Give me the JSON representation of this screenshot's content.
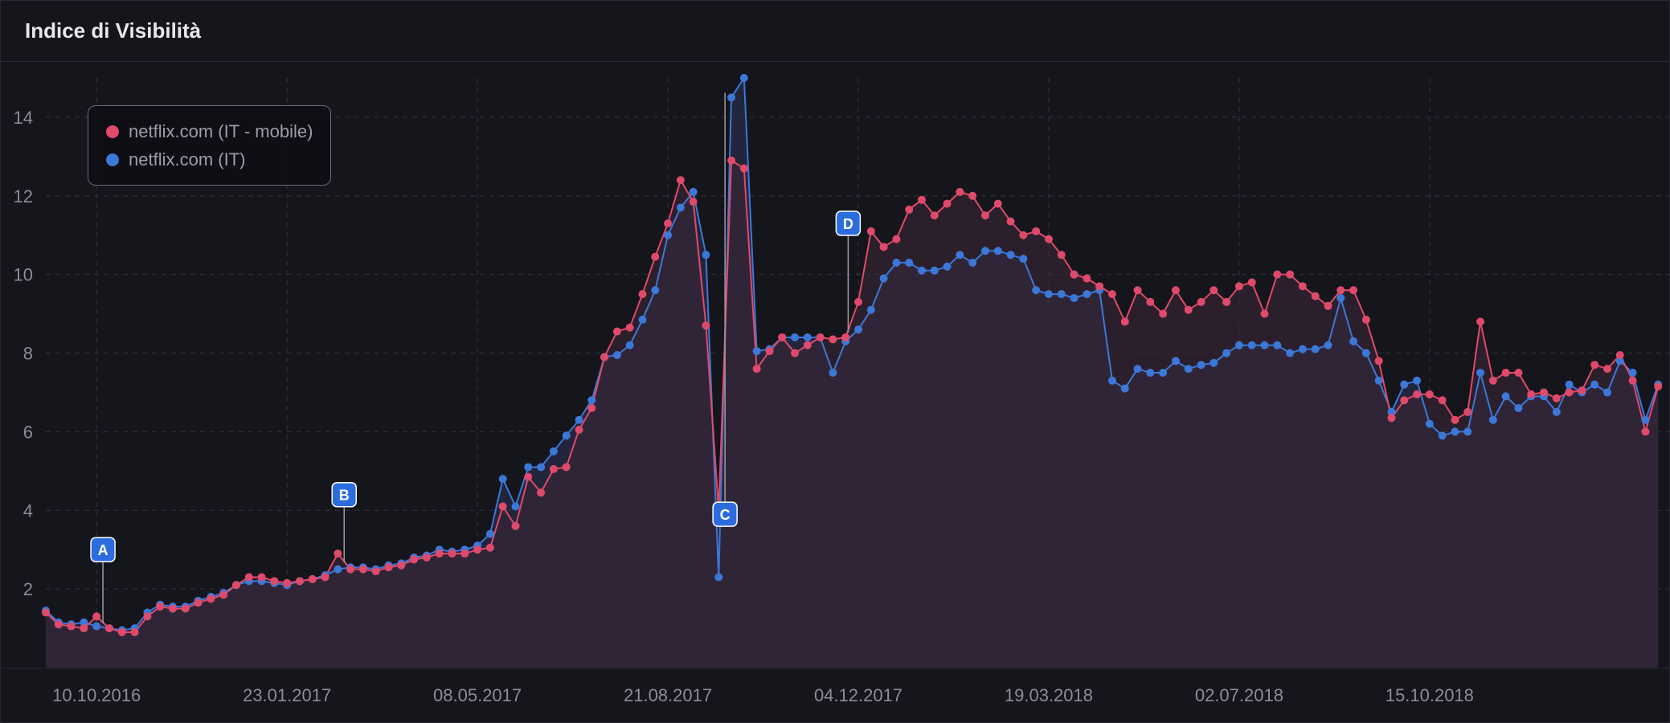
{
  "title": "Indice di Visibilità",
  "chart": {
    "type": "line-area",
    "background": "#15151c",
    "grid_color": "#34343f",
    "grid_dash": "6 6",
    "axis_label_color": "#8c8c9a",
    "axis_font_size": 22,
    "y": {
      "min": 0,
      "max": 15,
      "ticks": [
        2,
        4,
        6,
        8,
        10,
        12,
        14
      ]
    },
    "x": {
      "min": 0,
      "max": 128,
      "tick_labels": [
        "10.10.2016",
        "23.01.2017",
        "08.05.2017",
        "21.08.2017",
        "04.12.2017",
        "19.03.2018",
        "02.07.2018",
        "15.10.2018"
      ],
      "tick_positions": [
        4,
        19,
        34,
        49,
        64,
        79,
        94,
        109
      ]
    },
    "legend": {
      "position": "top-left",
      "border_color": "#6a6a7a",
      "background": "rgba(13,13,19,0.85)",
      "items": [
        {
          "label": "netflix.com (IT - mobile)",
          "color": "#e04a6a"
        },
        {
          "label": "netflix.com (IT)",
          "color": "#3c78d8"
        }
      ]
    },
    "series": [
      {
        "name": "netflix.com (IT)",
        "color": "#3c78d8",
        "marker_color": "#3c78d8",
        "marker_radius": 5,
        "line_width": 2,
        "fill": "#2b3150",
        "fill_opacity": 0.6,
        "values": [
          1.45,
          1.15,
          1.1,
          1.15,
          1.05,
          1.0,
          0.95,
          1.0,
          1.4,
          1.6,
          1.55,
          1.55,
          1.7,
          1.8,
          1.9,
          2.1,
          2.2,
          2.2,
          2.15,
          2.1,
          2.2,
          2.25,
          2.35,
          2.5,
          2.55,
          2.55,
          2.5,
          2.6,
          2.65,
          2.8,
          2.85,
          3.0,
          2.95,
          3.0,
          3.1,
          3.4,
          4.8,
          4.1,
          5.1,
          5.1,
          5.5,
          5.9,
          6.3,
          6.8,
          7.9,
          7.95,
          8.2,
          8.85,
          9.6,
          11.0,
          11.7,
          12.1,
          10.5,
          2.3,
          14.5,
          15.0,
          8.05,
          8.1,
          8.4,
          8.4,
          8.4,
          8.4,
          7.5,
          8.3,
          8.6,
          9.1,
          9.9,
          10.3,
          10.3,
          10.1,
          10.1,
          10.2,
          10.5,
          10.3,
          10.6,
          10.6,
          10.5,
          10.4,
          9.6,
          9.5,
          9.5,
          9.4,
          9.5,
          9.6,
          7.3,
          7.1,
          7.6,
          7.5,
          7.5,
          7.8,
          7.6,
          7.7,
          7.75,
          8.0,
          8.2,
          8.2,
          8.2,
          8.2,
          8.0,
          8.1,
          8.1,
          8.2,
          9.4,
          8.3,
          8.0,
          7.3,
          6.5,
          7.2,
          7.3,
          6.2,
          5.9,
          6.0,
          6.0,
          7.5,
          6.3,
          6.9,
          6.6,
          6.9,
          6.9,
          6.5,
          7.2,
          7.0,
          7.2,
          7.0,
          7.8,
          7.5,
          6.3,
          7.2
        ]
      },
      {
        "name": "netflix.com (IT - mobile)",
        "color": "#e04a6a",
        "marker_color": "#e04a6a",
        "marker_radius": 5,
        "line_width": 2,
        "fill": "#3a2736",
        "fill_opacity": 0.6,
        "values": [
          1.4,
          1.1,
          1.05,
          1.0,
          1.3,
          1.0,
          0.9,
          0.9,
          1.3,
          1.55,
          1.5,
          1.5,
          1.65,
          1.75,
          1.85,
          2.1,
          2.3,
          2.3,
          2.2,
          2.15,
          2.2,
          2.25,
          2.3,
          2.9,
          2.5,
          2.5,
          2.45,
          2.55,
          2.6,
          2.75,
          2.8,
          2.9,
          2.9,
          2.9,
          3.0,
          3.05,
          4.1,
          3.6,
          4.85,
          4.45,
          5.05,
          5.1,
          6.05,
          6.6,
          7.9,
          8.55,
          8.65,
          9.5,
          10.45,
          11.3,
          12.4,
          11.85,
          8.7,
          4.0,
          12.9,
          12.7,
          7.6,
          8.05,
          8.4,
          8.0,
          8.2,
          8.4,
          8.35,
          8.4,
          9.3,
          11.1,
          10.7,
          10.9,
          11.65,
          11.9,
          11.5,
          11.8,
          12.1,
          12.0,
          11.5,
          11.8,
          11.35,
          11.0,
          11.1,
          10.9,
          10.5,
          10.0,
          9.9,
          9.7,
          9.5,
          8.8,
          9.6,
          9.3,
          9.0,
          9.6,
          9.1,
          9.3,
          9.6,
          9.3,
          9.7,
          9.8,
          9.0,
          10.0,
          10.0,
          9.7,
          9.45,
          9.2,
          9.6,
          9.6,
          8.85,
          7.8,
          6.35,
          6.8,
          6.95,
          6.95,
          6.8,
          6.3,
          6.5,
          8.8,
          7.3,
          7.5,
          7.5,
          6.95,
          7.0,
          6.85,
          7.0,
          7.05,
          7.7,
          7.6,
          7.95,
          7.3,
          6.0,
          7.15
        ]
      }
    ],
    "pins": [
      {
        "id": "A",
        "x_index": 4.5,
        "y_value": 3.0,
        "color": "#2d6cdf"
      },
      {
        "id": "B",
        "x_index": 23.5,
        "y_value": 4.4,
        "color": "#2d6cdf"
      },
      {
        "id": "C",
        "x_index": 53.5,
        "y_value": 3.9,
        "color": "#2d6cdf"
      },
      {
        "id": "D",
        "x_index": 63.2,
        "y_value": 11.3,
        "color": "#2d6cdf"
      }
    ]
  }
}
